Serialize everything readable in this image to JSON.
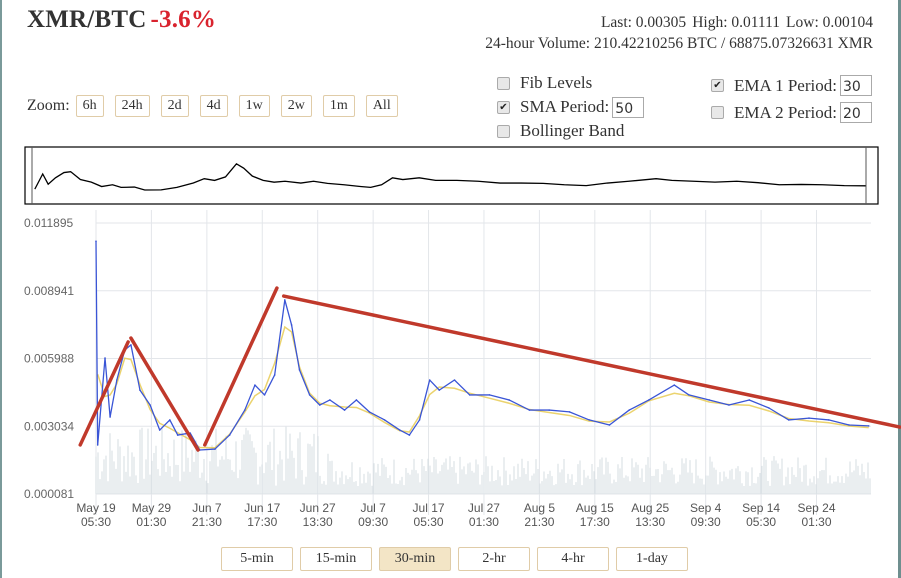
{
  "header": {
    "pair": "XMR/BTC",
    "change": "-3.6%"
  },
  "stats": {
    "last": "Last: 0.00305",
    "high": "High: 0.01111",
    "low": "Low: 0.00104",
    "volume": "24-hour Volume: 210.42210256 BTC / 68875.07326631 XMR"
  },
  "zoom": {
    "label": "Zoom:",
    "buttons": [
      "6h",
      "24h",
      "2d",
      "4d",
      "1w",
      "2w",
      "1m",
      "All"
    ]
  },
  "options": {
    "fib": {
      "label": "Fib Levels",
      "checked": false
    },
    "sma": {
      "label": "SMA Period:",
      "checked": true,
      "value": "50"
    },
    "bollinger": {
      "label": "Bollinger Band",
      "checked": false
    },
    "ema1": {
      "label": "EMA 1 Period:",
      "checked": true,
      "value": "30"
    },
    "ema2": {
      "label": "EMA 2 Period:",
      "checked": false,
      "value": "20"
    }
  },
  "periods": {
    "buttons": [
      "5-min",
      "15-min",
      "30-min",
      "2-hr",
      "4-hr",
      "1-day"
    ],
    "active": "30-min"
  },
  "colors": {
    "price": "#3a55d6",
    "sma": "#e6c84a",
    "trend": "#c0392b",
    "grid": "#e3e6ea",
    "negative": "#d9232e"
  },
  "chart_data": {
    "type": "line",
    "title": "XMR/BTC",
    "xlabel": "",
    "ylabel": "",
    "x_unit": "days since May 19 05:30",
    "ylim": [
      8.1e-05,
      0.011895
    ],
    "y_ticks": [
      "0.011895",
      "0.008941",
      "0.005988",
      "0.003034",
      "0.000081"
    ],
    "y_tick_values": [
      0.011895,
      0.008941,
      0.005988,
      0.003034,
      8.1e-05
    ],
    "x_ticks": [
      [
        "May 19",
        "05:30"
      ],
      [
        "May 29",
        "01:30"
      ],
      [
        "Jun 7",
        "21:30"
      ],
      [
        "Jun 17",
        "17:30"
      ],
      [
        "Jun 27",
        "13:30"
      ],
      [
        "Jul 7",
        "09:30"
      ],
      [
        "Jul 17",
        "05:30"
      ],
      [
        "Jul 27",
        "01:30"
      ],
      [
        "Aug 5",
        "21:30"
      ],
      [
        "Aug 15",
        "17:30"
      ],
      [
        "Aug 25",
        "13:30"
      ],
      [
        "Sep 4",
        "09:30"
      ],
      [
        "Sep 14",
        "05:30"
      ],
      [
        "Sep 24",
        "01:30"
      ]
    ],
    "x_tick_days": [
      0,
      9.83,
      19.67,
      29.5,
      39.33,
      49.17,
      59,
      68.83,
      78.67,
      88.5,
      98.33,
      108.17,
      118,
      127.83
    ],
    "xlim": [
      0,
      137.5
    ],
    "grid": true,
    "series": [
      {
        "name": "EMA 1 (30)",
        "x": [
          0,
          0.3,
          1.6,
          2.5,
          3.7,
          5.1,
          6.2,
          7.8,
          9.6,
          11.3,
          13.1,
          14.5,
          16.7,
          18.4,
          21.1,
          23.7,
          26.4,
          28.2,
          29.9,
          31.7,
          33.5,
          34.7,
          36.1,
          37.9,
          39.7,
          41.5,
          44.1,
          46.2,
          48.5,
          51.2,
          53.9,
          55.6,
          57.4,
          59.2,
          60.9,
          63.6,
          66.3,
          69.8,
          73.3,
          76.9,
          80.4,
          84.0,
          87.5,
          91.1,
          94.6,
          98.1,
          102.6,
          105.2,
          108.8,
          112.3,
          115.9,
          119.4,
          122.9,
          126.5,
          130.0,
          133.6,
          137.1
        ],
        "y": [
          0.0111,
          0.00222,
          0.00601,
          0.00344,
          0.00505,
          0.00636,
          0.00658,
          0.00461,
          0.00396,
          0.00287,
          0.00331,
          0.00265,
          0.00274,
          0.002,
          0.00204,
          0.00265,
          0.00374,
          0.00483,
          0.0044,
          0.00527,
          0.00854,
          0.00745,
          0.00549,
          0.0044,
          0.00396,
          0.00418,
          0.00374,
          0.00418,
          0.00366,
          0.00331,
          0.00287,
          0.00265,
          0.00331,
          0.00505,
          0.00461,
          0.00505,
          0.0044,
          0.0044,
          0.00418,
          0.00374,
          0.00374,
          0.00366,
          0.00331,
          0.00309,
          0.00374,
          0.00418,
          0.00483,
          0.0044,
          0.00418,
          0.00396,
          0.00418,
          0.00383,
          0.00331,
          0.00339,
          0.00331,
          0.00309,
          0.00305
        ]
      }
    ],
    "annotations": [
      {
        "type": "trendline",
        "from": [
          -2.8,
          0.00222
        ],
        "to": [
          5.7,
          0.00671
        ]
      },
      {
        "type": "trendline",
        "from": [
          6.2,
          0.00688
        ],
        "to": [
          18.1,
          0.002
        ]
      },
      {
        "type": "trendline",
        "from": [
          19.3,
          0.00222
        ],
        "to": [
          32.1,
          0.00906
        ]
      },
      {
        "type": "trendline",
        "from": [
          33.3,
          0.00871
        ],
        "to": [
          142.6,
          0.003
        ]
      }
    ]
  }
}
